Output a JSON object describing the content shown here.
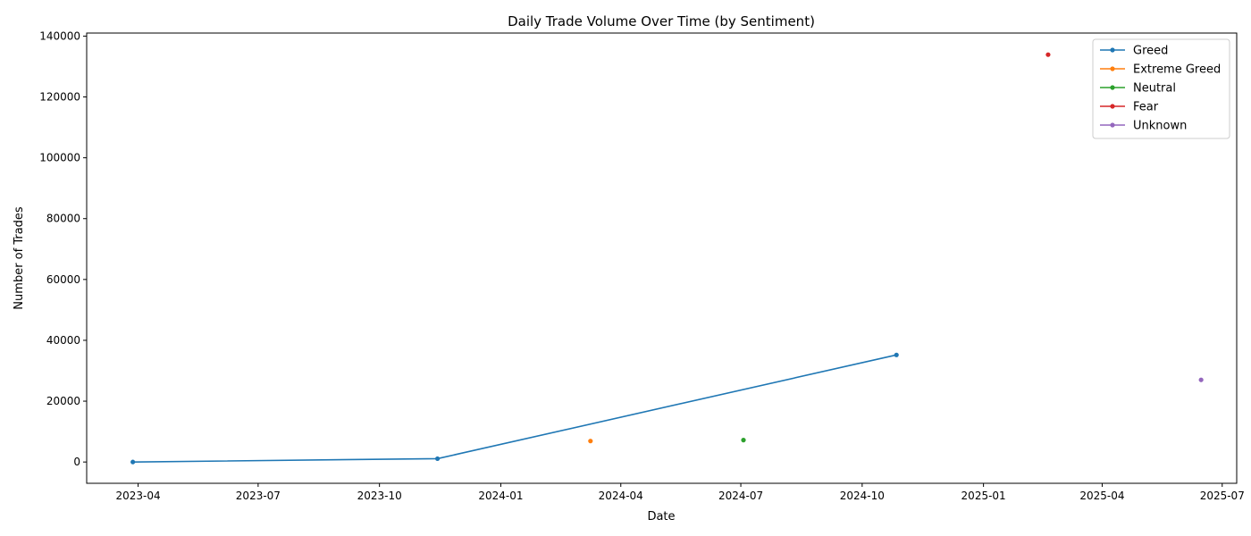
{
  "chart_data": {
    "type": "line",
    "title": "Daily Trade Volume Over Time (by Sentiment)",
    "xlabel": "Date",
    "ylabel": "Number of Trades",
    "x_axis_type": "date",
    "xlim": [
      "2023-02-21",
      "2025-07-12"
    ],
    "ylim": [
      -7000,
      141000
    ],
    "x_ticks": [
      "2023-04",
      "2023-07",
      "2023-10",
      "2024-01",
      "2024-04",
      "2024-07",
      "2024-10",
      "2025-01",
      "2025-04",
      "2025-07"
    ],
    "x_tick_dates": [
      "2023-04-01",
      "2023-07-01",
      "2023-10-01",
      "2024-01-01",
      "2024-04-01",
      "2024-07-01",
      "2024-10-01",
      "2025-01-01",
      "2025-04-01",
      "2025-07-01"
    ],
    "y_ticks": [
      0,
      20000,
      40000,
      60000,
      80000,
      100000,
      120000,
      140000
    ],
    "grid": false,
    "legend_position": "top-right",
    "series": [
      {
        "name": "Greed",
        "color": "#1f77b4",
        "points": [
          {
            "x": "2023-03-28",
            "y": 0
          },
          {
            "x": "2023-11-14",
            "y": 1100
          },
          {
            "x": "2024-10-27",
            "y": 35200
          }
        ]
      },
      {
        "name": "Extreme Greed",
        "color": "#ff7f0e",
        "points": [
          {
            "x": "2024-03-09",
            "y": 6900
          }
        ]
      },
      {
        "name": "Neutral",
        "color": "#2ca02c",
        "points": [
          {
            "x": "2024-07-03",
            "y": 7200
          }
        ]
      },
      {
        "name": "Fear",
        "color": "#d62728",
        "points": [
          {
            "x": "2025-02-19",
            "y": 133900
          }
        ]
      },
      {
        "name": "Unknown",
        "color": "#9467bd",
        "points": [
          {
            "x": "2025-06-15",
            "y": 27000
          }
        ]
      }
    ]
  }
}
